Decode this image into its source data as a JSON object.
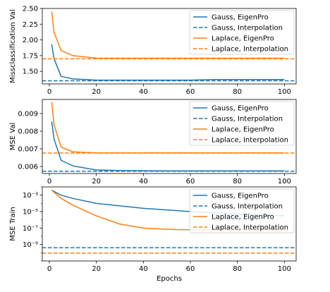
{
  "figure": {
    "xlabel": "Epochs",
    "x_ticks": [
      0,
      20,
      40,
      60,
      80,
      100
    ]
  },
  "chart_data": [
    {
      "type": "line",
      "title": "",
      "ylabel": "Missclassification Val",
      "xlabel": "",
      "xlim": [
        -3,
        105
      ],
      "ylim": [
        1.3,
        2.5
      ],
      "yscale": "linear",
      "y_ticks": [
        1.5,
        1.75,
        2.0,
        2.25,
        2.5
      ],
      "y_tick_labels": [
        "1.50",
        "1.75",
        "2.00",
        "2.25",
        "2.50"
      ],
      "legend_placement": "top-right",
      "grid": false,
      "series": [
        {
          "name": "Gauss, EigenPro",
          "color": "#1f77b4",
          "style": "solid",
          "x": [
            1,
            2,
            5,
            10,
            20,
            30,
            40,
            50,
            60,
            70,
            80,
            90,
            100
          ],
          "y": [
            1.93,
            1.7,
            1.42,
            1.38,
            1.36,
            1.36,
            1.36,
            1.36,
            1.36,
            1.37,
            1.37,
            1.37,
            1.37
          ]
        },
        {
          "name": "Gauss, Interpolation",
          "color": "#1f77b4",
          "style": "dashed",
          "hline": 1.35
        },
        {
          "name": "Laplace, EigenPro",
          "color": "#ff7f0e",
          "style": "solid",
          "x": [
            1,
            2,
            5,
            10,
            20,
            30,
            40,
            50,
            60,
            70,
            80,
            90,
            100
          ],
          "y": [
            2.45,
            2.12,
            1.83,
            1.75,
            1.71,
            1.71,
            1.71,
            1.71,
            1.71,
            1.71,
            1.71,
            1.71,
            1.71
          ]
        },
        {
          "name": "Laplace, Interpolation",
          "color": "#ff7f0e",
          "style": "dashed",
          "hline": 1.7
        }
      ]
    },
    {
      "type": "line",
      "title": "",
      "ylabel": "MSE Val",
      "xlabel": "",
      "xlim": [
        -3,
        105
      ],
      "ylim": [
        0.0056,
        0.0098
      ],
      "yscale": "linear",
      "y_ticks": [
        0.006,
        0.007,
        0.008,
        0.009
      ],
      "y_tick_labels": [
        "0.006",
        "0.007",
        "0.008",
        "0.009"
      ],
      "legend_placement": "top-right",
      "grid": false,
      "series": [
        {
          "name": "Gauss, EigenPro",
          "color": "#1f77b4",
          "style": "solid",
          "x": [
            1,
            2,
            5,
            10,
            20,
            30,
            40,
            50,
            60,
            70,
            80,
            90,
            100
          ],
          "y": [
            0.00855,
            0.00755,
            0.00635,
            0.00603,
            0.0058,
            0.00577,
            0.00576,
            0.00575,
            0.00575,
            0.00575,
            0.00575,
            0.00575,
            0.00575
          ]
        },
        {
          "name": "Gauss, Interpolation",
          "color": "#1f77b4",
          "style": "dashed",
          "hline": 0.00573
        },
        {
          "name": "Laplace, EigenPro",
          "color": "#ff7f0e",
          "style": "solid",
          "x": [
            1,
            2,
            5,
            10,
            20,
            30,
            40,
            50,
            60,
            70,
            80,
            90,
            100
          ],
          "y": [
            0.00965,
            0.00835,
            0.0071,
            0.00683,
            0.00677,
            0.00677,
            0.00677,
            0.00677,
            0.00677,
            0.00677,
            0.00677,
            0.00677,
            0.00677
          ]
        },
        {
          "name": "Laplace, Interpolation",
          "color": "#ff7f0e",
          "style": "dashed",
          "hline": 0.00676
        }
      ]
    },
    {
      "type": "line",
      "title": "",
      "ylabel": "MSE Train",
      "xlabel": "Epochs",
      "xlim": [
        -3,
        105
      ],
      "ylim": [
        1e-11,
        0.01
      ],
      "yscale": "log",
      "y_ticks": [
        1e-09,
        1e-07,
        1e-05,
        0.001
      ],
      "y_tick_labels": [
        "10⁻⁹",
        "10⁻⁷",
        "10⁻⁵",
        "10⁻³"
      ],
      "legend_placement": "top-right",
      "grid": false,
      "series": [
        {
          "name": "Gauss, EigenPro",
          "color": "#1f77b4",
          "style": "solid",
          "x": [
            1,
            5,
            10,
            20,
            30,
            40,
            50,
            60,
            70,
            80,
            90,
            100
          ],
          "y": [
            0.004,
            0.001,
            0.0004,
            0.0001,
            5e-05,
            2.5e-05,
            1.6e-05,
            1e-05,
            7e-06,
            5e-06,
            4e-06,
            3e-06
          ]
        },
        {
          "name": "Gauss, Interpolation",
          "color": "#1f77b4",
          "style": "dashed",
          "hline": 4e-10
        },
        {
          "name": "Laplace, EigenPro",
          "color": "#ff7f0e",
          "style": "solid",
          "x": [
            1,
            5,
            10,
            20,
            30,
            40,
            50,
            60,
            70,
            80,
            90,
            100
          ],
          "y": [
            0.004,
            0.0004,
            6e-05,
            3e-06,
            3e-07,
            1e-07,
            7e-08,
            6e-08,
            6e-08,
            6e-08,
            6e-08,
            6e-08
          ]
        },
        {
          "name": "Laplace, Interpolation",
          "color": "#ff7f0e",
          "style": "dashed",
          "hline": 9e-11
        }
      ]
    }
  ]
}
